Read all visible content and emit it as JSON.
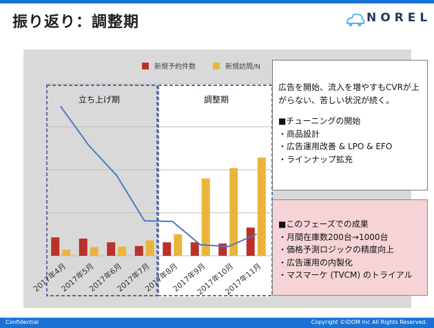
{
  "slide": {
    "title": "振り返り：調整期",
    "logo_text": "NOREL"
  },
  "chart_data": {
    "type": "bar",
    "categories": [
      "2017年4月",
      "2017年5月",
      "2017年6月",
      "2017年7月",
      "2017年8月",
      "2017年9月",
      "2017年10月",
      "2017年11月"
    ],
    "series": [
      {
        "name": "新規予約件数",
        "values": [
          30,
          28,
          22,
          16,
          22,
          22,
          20,
          46
        ],
        "color": "#b8322b"
      },
      {
        "name": "新規訪問/N",
        "values": [
          10,
          14,
          15,
          25,
          35,
          126,
          143,
          160
        ],
        "color": "#eab43c"
      },
      {
        "name": "",
        "type": "line",
        "values": [
          243,
          180,
          131,
          57,
          56,
          18,
          15,
          35
        ],
        "color": "#4a79c4"
      }
    ],
    "ylim": [
      0,
      280
    ],
    "grid": true,
    "legend": "top",
    "phases": [
      {
        "label": "立ち上げ期",
        "start": 0,
        "end": 3
      },
      {
        "label": "調整期",
        "start": 4,
        "end": 7
      }
    ]
  },
  "callouts": {
    "top": [
      "広告を開始、流入を増やすもCVRが上",
      "がらない、苦しい状況が続く。",
      "",
      "■チューニングの開始",
      "・商品設計",
      "・広告運用改善 & LPO & EFO",
      "・ラインナップ拡充"
    ],
    "bottom": [
      "■このフェーズでの成果",
      "・月間在庫数200台→1000台",
      "・価格予測ロジックの精度向上",
      "・広告運用の内製化",
      "・マスマーケ (TVCM) のトライアル"
    ]
  },
  "footer": {
    "left": "Confidential",
    "right": "Copyright ©IDOM Inc All Rights Reserved."
  }
}
